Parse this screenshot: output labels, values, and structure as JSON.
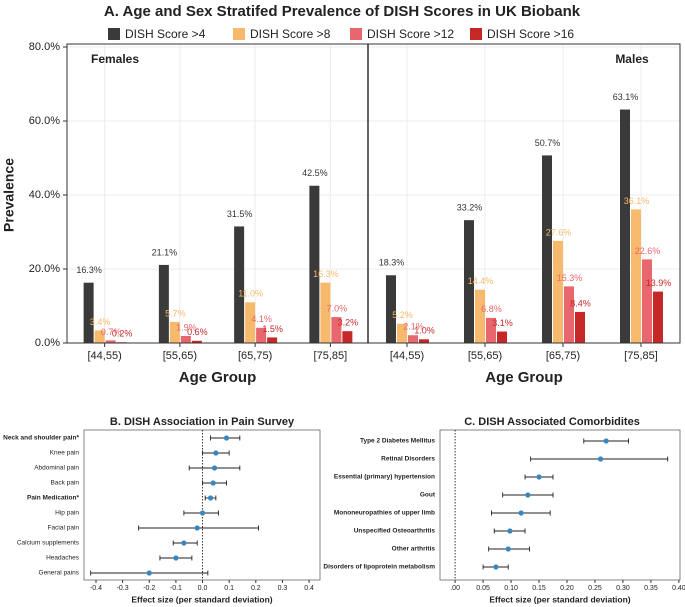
{
  "chart_data": [
    {
      "type": "bar",
      "title": "A. Age and Sex Stratifed Prevalence of DISH Scores in UK Biobank",
      "ylabel": "Prevalence",
      "ylim": [
        0,
        80
      ],
      "yticks": [
        {
          "value": 0,
          "label": "0.0%"
        },
        {
          "value": 20,
          "label": "20.0%"
        },
        {
          "value": 40,
          "label": "40.0%"
        },
        {
          "value": 60,
          "label": "60.0%"
        },
        {
          "value": 80,
          "label": "80.0%"
        }
      ],
      "grid": true,
      "categories": [
        "[44,55)",
        "[55,65)",
        "[65,75)",
        "[75,85]"
      ],
      "series": [
        {
          "name": "DISH Score >4",
          "color": "#3a3a3a"
        },
        {
          "name": "DISH Score >8",
          "color": "#f7b96b"
        },
        {
          "name": "DISH Score >12",
          "color": "#e8666d"
        },
        {
          "name": "DISH Score >16",
          "color": "#c62828"
        }
      ],
      "facets": [
        {
          "title": "Females",
          "xlabel": "Age Group",
          "series": [
            {
              "values": [
                16.3,
                21.1,
                31.5,
                42.5
              ],
              "value_labels": [
                "16.3%",
                "21.1%",
                "31.5%",
                "42.5%"
              ]
            },
            {
              "values": [
                3.4,
                5.7,
                11.0,
                16.3
              ],
              "value_labels": [
                "3.4%",
                "5.7%",
                "11.0%",
                "16.3%"
              ]
            },
            {
              "values": [
                0.7,
                1.9,
                4.1,
                7.0
              ],
              "value_labels": [
                "0.7%",
                "1.9%",
                "4.1%",
                "7.0%"
              ]
            },
            {
              "values": [
                0.2,
                0.6,
                1.5,
                3.2
              ],
              "value_labels": [
                "0.2%",
                "0.6%",
                "1.5%",
                "3.2%"
              ]
            }
          ]
        },
        {
          "title": "Males",
          "xlabel": "Age Group",
          "series": [
            {
              "values": [
                18.3,
                33.2,
                50.7,
                63.1
              ],
              "value_labels": [
                "18.3%",
                "33.2%",
                "50.7%",
                "63.1%"
              ]
            },
            {
              "values": [
                5.2,
                14.4,
                27.6,
                36.1
              ],
              "value_labels": [
                "5.2%",
                "14.4%",
                "27.6%",
                "36.1%"
              ]
            },
            {
              "values": [
                2.1,
                6.8,
                15.3,
                22.6
              ],
              "value_labels": [
                "2.1%",
                "6.8%",
                "15.3%",
                "22.6%"
              ]
            },
            {
              "values": [
                1.0,
                3.1,
                8.4,
                13.9
              ],
              "value_labels": [
                "1.0%",
                "3.1%",
                "8.4%",
                "13.9%"
              ]
            }
          ]
        }
      ]
    },
    {
      "type": "forest",
      "title": "B. DISH Association in Pain Survey",
      "xlabel": "Effect size (per standard deviation)",
      "categories": [
        "Neck and shoulder pain*",
        "Knee pain",
        "Abdominal pain",
        "Back pain",
        "Pain Medication*",
        "Hip pain",
        "Facial pain",
        "Calcium supplements",
        "Headaches",
        "General pains"
      ],
      "bold": [
        true,
        false,
        false,
        false,
        true,
        false,
        false,
        false,
        false,
        false
      ],
      "values": [
        0.09,
        0.05,
        0.045,
        0.04,
        0.03,
        0.0,
        -0.02,
        -0.07,
        -0.1,
        -0.2
      ],
      "ci_low": [
        0.03,
        0.0,
        -0.05,
        0.0,
        0.01,
        -0.07,
        -0.24,
        -0.11,
        -0.16,
        -0.42
      ],
      "ci_high": [
        0.14,
        0.1,
        0.14,
        0.09,
        0.05,
        0.06,
        0.21,
        -0.02,
        -0.04,
        0.02
      ],
      "color": "#3a87c0",
      "xlim": [
        -0.445,
        0.441
      ],
      "xticks": [
        -0.4,
        -0.3,
        -0.2,
        -0.1,
        {
          "value": 0,
          "label": "0.0"
        },
        0.1,
        0.2,
        0.3,
        0.4
      ]
    },
    {
      "type": "forest",
      "title": "C. DISH Associated Comorbidites",
      "xlabel": "Effect size (per standard deviation)",
      "categories": [
        "Type 2 Diabetes Mellitus",
        "Retinal Disorders",
        "Essential (primary) hypertension",
        "Gout",
        "Mononeuropathies of upper limb",
        "Unspecified Osteoarthritis",
        "Other arthritis",
        "Disorders of lipoprotein metabolism"
      ],
      "bold": [
        true,
        true,
        true,
        true,
        true,
        true,
        true,
        true
      ],
      "values": [
        0.27,
        0.26,
        0.15,
        0.13,
        0.118,
        0.098,
        0.095,
        0.073
      ],
      "ci_low": [
        0.23,
        0.135,
        0.125,
        0.085,
        0.065,
        0.07,
        0.06,
        0.05
      ],
      "ci_high": [
        0.31,
        0.38,
        0.175,
        0.175,
        0.17,
        0.125,
        0.133,
        0.095
      ],
      "color": "#3a87c0",
      "xlim": [
        -0.027,
        0.402
      ],
      "xticks": [
        {
          "value": 0,
          "label": ".00"
        },
        0.05,
        {
          "value": 0.1,
          "label": "0.10"
        },
        0.15,
        {
          "value": 0.2,
          "label": "0.20"
        },
        0.25,
        {
          "value": 0.3,
          "label": "0.30"
        },
        0.35,
        {
          "value": 0.4,
          "label": "0.40"
        }
      ]
    }
  ]
}
